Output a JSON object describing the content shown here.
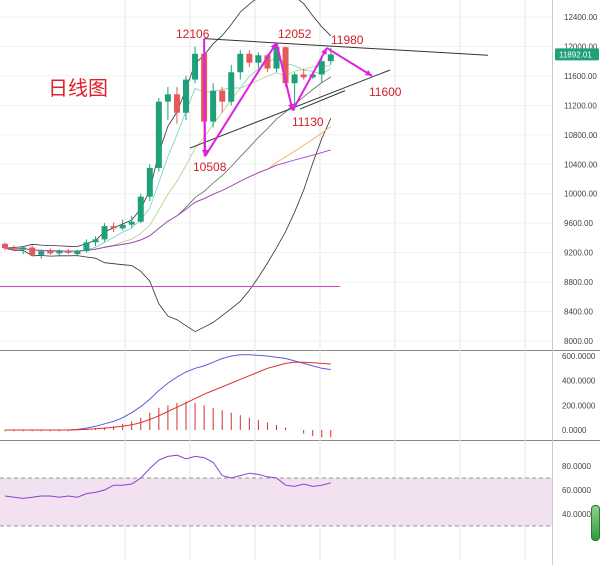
{
  "chart_data": [
    {
      "type": "candlestick",
      "title": "日线图",
      "y_ticks": [
        "12400.00",
        "12000.00",
        "11600.00",
        "11200.00",
        "10800.00",
        "10400.00",
        "10000.00",
        "9600.00",
        "9200.00",
        "8800.00",
        "8400.00",
        "8000.00"
      ],
      "ylim": [
        7950,
        12550
      ],
      "last_price": "11892.01",
      "annotations": [
        "12106",
        "12052",
        "11980",
        "10508",
        "11130",
        "11600"
      ],
      "candles": [
        {
          "o": 9320,
          "h": 9340,
          "l": 9230,
          "c": 9260
        },
        {
          "o": 9260,
          "h": 9300,
          "l": 9220,
          "c": 9240
        },
        {
          "o": 9240,
          "h": 9290,
          "l": 9180,
          "c": 9270
        },
        {
          "o": 9270,
          "h": 9300,
          "l": 9150,
          "c": 9170
        },
        {
          "o": 9170,
          "h": 9240,
          "l": 9120,
          "c": 9220
        },
        {
          "o": 9220,
          "h": 9260,
          "l": 9170,
          "c": 9190
        },
        {
          "o": 9190,
          "h": 9240,
          "l": 9160,
          "c": 9220
        },
        {
          "o": 9220,
          "h": 9250,
          "l": 9180,
          "c": 9200
        },
        {
          "o": 9180,
          "h": 9240,
          "l": 9150,
          "c": 9220
        },
        {
          "o": 9220,
          "h": 9380,
          "l": 9200,
          "c": 9340
        },
        {
          "o": 9340,
          "h": 9420,
          "l": 9290,
          "c": 9380
        },
        {
          "o": 9380,
          "h": 9600,
          "l": 9350,
          "c": 9560
        },
        {
          "o": 9560,
          "h": 9610,
          "l": 9480,
          "c": 9530
        },
        {
          "o": 9530,
          "h": 9650,
          "l": 9500,
          "c": 9580
        },
        {
          "o": 9580,
          "h": 9700,
          "l": 9540,
          "c": 9620
        },
        {
          "o": 9620,
          "h": 10000,
          "l": 9600,
          "c": 9960
        },
        {
          "o": 9960,
          "h": 10400,
          "l": 9900,
          "c": 10350
        },
        {
          "o": 10350,
          "h": 11300,
          "l": 10300,
          "c": 11250
        },
        {
          "o": 11250,
          "h": 11450,
          "l": 11000,
          "c": 11350
        },
        {
          "o": 11350,
          "h": 11450,
          "l": 10950,
          "c": 11100
        },
        {
          "o": 11100,
          "h": 11600,
          "l": 11000,
          "c": 11550
        },
        {
          "o": 11550,
          "h": 12000,
          "l": 11500,
          "c": 11900
        },
        {
          "o": 11900,
          "h": 12106,
          "l": 10508,
          "c": 10980
        },
        {
          "o": 10980,
          "h": 11500,
          "l": 10900,
          "c": 11400
        },
        {
          "o": 11400,
          "h": 11450,
          "l": 11100,
          "c": 11250
        },
        {
          "o": 11250,
          "h": 11750,
          "l": 11200,
          "c": 11650
        },
        {
          "o": 11650,
          "h": 11950,
          "l": 11550,
          "c": 11900
        },
        {
          "o": 11900,
          "h": 11950,
          "l": 11720,
          "c": 11780
        },
        {
          "o": 11780,
          "h": 11920,
          "l": 11700,
          "c": 11880
        },
        {
          "o": 11880,
          "h": 11900,
          "l": 11650,
          "c": 11700
        },
        {
          "o": 11700,
          "h": 12052,
          "l": 11650,
          "c": 11990
        },
        {
          "o": 11990,
          "h": 12000,
          "l": 11450,
          "c": 11500
        },
        {
          "o": 11500,
          "h": 11650,
          "l": 11130,
          "c": 11620
        },
        {
          "o": 11620,
          "h": 11700,
          "l": 11550,
          "c": 11580
        },
        {
          "o": 11580,
          "h": 11650,
          "l": 11560,
          "c": 11620
        },
        {
          "o": 11620,
          "h": 11850,
          "l": 11500,
          "c": 11800
        },
        {
          "o": 11800,
          "h": 11980,
          "l": 11750,
          "c": 11892
        }
      ]
    },
    {
      "type": "line",
      "y_ticks": [
        "600.0000",
        "400.0000",
        "200.0000",
        "0.0000"
      ],
      "ylim": [
        -40,
        640
      ],
      "series": [
        {
          "color": "#5b5be0",
          "values": [
            0,
            0,
            0,
            0,
            0,
            0,
            0,
            0,
            5,
            15,
            30,
            50,
            70,
            100,
            140,
            190,
            250,
            320,
            380,
            430,
            470,
            500,
            520,
            550,
            580,
            600,
            610,
            610,
            605,
            600,
            590,
            580,
            560,
            540,
            520,
            500,
            490
          ]
        },
        {
          "color": "#e0302a",
          "values": [
            0,
            0,
            0,
            0,
            0,
            0,
            0,
            0,
            2,
            5,
            10,
            15,
            22,
            30,
            42,
            60,
            85,
            115,
            150,
            185,
            220,
            255,
            290,
            320,
            350,
            380,
            410,
            440,
            470,
            500,
            520,
            540,
            550,
            550,
            545,
            540,
            535
          ]
        }
      ],
      "bars": [
        -10,
        -10,
        -10,
        -10,
        -10,
        -10,
        -10,
        -10,
        5,
        10,
        15,
        20,
        30,
        50,
        70,
        100,
        140,
        180,
        200,
        220,
        230,
        220,
        200,
        180,
        160,
        140,
        120,
        100,
        80,
        60,
        40,
        20,
        0,
        -30,
        -50,
        -60,
        -60
      ]
    },
    {
      "type": "line",
      "y_ticks": [
        "80.0000",
        "60.0000",
        "40.0000"
      ],
      "ylim": [
        28,
        98
      ],
      "series": [
        {
          "color": "#8844cc",
          "values": [
            55,
            54,
            53,
            54,
            55,
            55,
            54,
            55,
            54,
            57,
            58,
            60,
            64,
            64,
            65,
            70,
            78,
            85,
            88,
            89,
            86,
            88,
            87,
            83,
            72,
            70,
            72,
            74,
            73,
            71,
            70,
            64,
            63,
            65,
            63,
            64,
            66
          ]
        }
      ],
      "band": [
        30,
        70
      ]
    }
  ]
}
